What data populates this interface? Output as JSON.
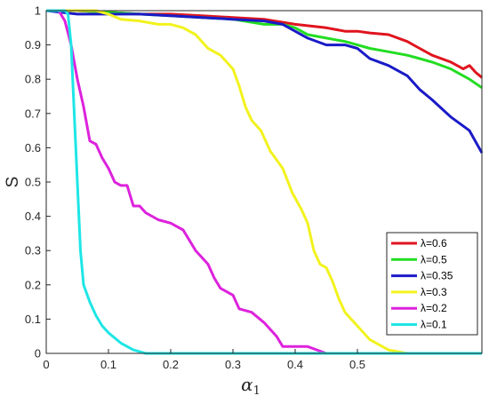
{
  "chart_data": {
    "type": "line",
    "title": "",
    "xlabel": "α",
    "xlabel_subscript": "1",
    "ylabel": "S",
    "xlim": [
      0,
      0.7
    ],
    "ylim": [
      0,
      1
    ],
    "xticks": [
      "0",
      "0.1",
      "0.2",
      "0.3",
      "0.4",
      "0.5"
    ],
    "xtick_values": [
      0,
      0.1,
      0.2,
      0.3,
      0.4,
      0.5
    ],
    "yticks": [
      "0",
      "0.1",
      "0.2",
      "0.3",
      "0.4",
      "0.5",
      "0.6",
      "0.7",
      "0.8",
      "0.9",
      "1"
    ],
    "ytick_values": [
      0,
      0.1,
      0.2,
      0.3,
      0.4,
      0.5,
      0.6,
      0.7,
      0.8,
      0.9,
      1
    ],
    "grid": false,
    "legend_position": "bottom-right",
    "series": [
      {
        "name": "λ=0.6",
        "color": "#e0141e",
        "points": [
          [
            0,
            1
          ],
          [
            0.05,
            1
          ],
          [
            0.1,
            0.995
          ],
          [
            0.15,
            0.99
          ],
          [
            0.2,
            0.99
          ],
          [
            0.25,
            0.985
          ],
          [
            0.3,
            0.98
          ],
          [
            0.35,
            0.975
          ],
          [
            0.4,
            0.96
          ],
          [
            0.45,
            0.95
          ],
          [
            0.48,
            0.94
          ],
          [
            0.5,
            0.94
          ],
          [
            0.52,
            0.935
          ],
          [
            0.55,
            0.93
          ],
          [
            0.58,
            0.91
          ],
          [
            0.6,
            0.89
          ],
          [
            0.62,
            0.87
          ],
          [
            0.65,
            0.85
          ],
          [
            0.67,
            0.83
          ],
          [
            0.68,
            0.84
          ],
          [
            0.69,
            0.82
          ],
          [
            0.7,
            0.805
          ]
        ]
      },
      {
        "name": "λ=0.5",
        "color": "#22dd22",
        "points": [
          [
            0,
            1
          ],
          [
            0.05,
            1
          ],
          [
            0.1,
            0.995
          ],
          [
            0.15,
            0.99
          ],
          [
            0.2,
            0.985
          ],
          [
            0.25,
            0.98
          ],
          [
            0.3,
            0.975
          ],
          [
            0.35,
            0.96
          ],
          [
            0.38,
            0.96
          ],
          [
            0.4,
            0.95
          ],
          [
            0.42,
            0.93
          ],
          [
            0.45,
            0.92
          ],
          [
            0.48,
            0.91
          ],
          [
            0.5,
            0.9
          ],
          [
            0.52,
            0.89
          ],
          [
            0.55,
            0.88
          ],
          [
            0.58,
            0.87
          ],
          [
            0.6,
            0.86
          ],
          [
            0.62,
            0.85
          ],
          [
            0.65,
            0.83
          ],
          [
            0.68,
            0.8
          ],
          [
            0.7,
            0.775
          ]
        ]
      },
      {
        "name": "λ=0.35",
        "color": "#1a1ac8",
        "points": [
          [
            0,
            1
          ],
          [
            0.05,
            0.99
          ],
          [
            0.1,
            0.99
          ],
          [
            0.15,
            0.99
          ],
          [
            0.2,
            0.985
          ],
          [
            0.25,
            0.98
          ],
          [
            0.3,
            0.975
          ],
          [
            0.35,
            0.97
          ],
          [
            0.38,
            0.96
          ],
          [
            0.4,
            0.94
          ],
          [
            0.42,
            0.92
          ],
          [
            0.45,
            0.9
          ],
          [
            0.48,
            0.9
          ],
          [
            0.5,
            0.89
          ],
          [
            0.52,
            0.86
          ],
          [
            0.55,
            0.84
          ],
          [
            0.58,
            0.81
          ],
          [
            0.6,
            0.77
          ],
          [
            0.62,
            0.74
          ],
          [
            0.65,
            0.69
          ],
          [
            0.68,
            0.65
          ],
          [
            0.7,
            0.585
          ]
        ]
      },
      {
        "name": "λ=0.3",
        "color": "#f2f21e",
        "points": [
          [
            0,
            1
          ],
          [
            0.05,
            1
          ],
          [
            0.08,
            1
          ],
          [
            0.1,
            0.99
          ],
          [
            0.12,
            0.975
          ],
          [
            0.15,
            0.97
          ],
          [
            0.18,
            0.96
          ],
          [
            0.2,
            0.96
          ],
          [
            0.22,
            0.95
          ],
          [
            0.24,
            0.93
          ],
          [
            0.26,
            0.89
          ],
          [
            0.28,
            0.87
          ],
          [
            0.3,
            0.83
          ],
          [
            0.31,
            0.78
          ],
          [
            0.32,
            0.72
          ],
          [
            0.33,
            0.68
          ],
          [
            0.345,
            0.65
          ],
          [
            0.36,
            0.59
          ],
          [
            0.38,
            0.54
          ],
          [
            0.395,
            0.47
          ],
          [
            0.41,
            0.42
          ],
          [
            0.42,
            0.38
          ],
          [
            0.43,
            0.3
          ],
          [
            0.44,
            0.26
          ],
          [
            0.45,
            0.25
          ],
          [
            0.46,
            0.21
          ],
          [
            0.47,
            0.16
          ],
          [
            0.48,
            0.12
          ],
          [
            0.5,
            0.08
          ],
          [
            0.52,
            0.04
          ],
          [
            0.55,
            0.01
          ],
          [
            0.58,
            0
          ],
          [
            0.7,
            0
          ]
        ]
      },
      {
        "name": "λ=0.2",
        "color": "#dd22dd",
        "points": [
          [
            0.02,
            1
          ],
          [
            0.03,
            0.97
          ],
          [
            0.04,
            0.9
          ],
          [
            0.05,
            0.8
          ],
          [
            0.06,
            0.72
          ],
          [
            0.07,
            0.62
          ],
          [
            0.08,
            0.61
          ],
          [
            0.09,
            0.57
          ],
          [
            0.1,
            0.54
          ],
          [
            0.11,
            0.5
          ],
          [
            0.12,
            0.49
          ],
          [
            0.13,
            0.49
          ],
          [
            0.14,
            0.43
          ],
          [
            0.15,
            0.43
          ],
          [
            0.16,
            0.41
          ],
          [
            0.18,
            0.39
          ],
          [
            0.2,
            0.38
          ],
          [
            0.22,
            0.36
          ],
          [
            0.24,
            0.3
          ],
          [
            0.25,
            0.28
          ],
          [
            0.26,
            0.26
          ],
          [
            0.27,
            0.22
          ],
          [
            0.28,
            0.19
          ],
          [
            0.3,
            0.17
          ],
          [
            0.31,
            0.13
          ],
          [
            0.33,
            0.12
          ],
          [
            0.35,
            0.09
          ],
          [
            0.37,
            0.05
          ],
          [
            0.38,
            0.02
          ],
          [
            0.42,
            0.02
          ],
          [
            0.45,
            0
          ],
          [
            0.7,
            0
          ]
        ]
      },
      {
        "name": "λ=0.1",
        "color": "#1ee6e6",
        "points": [
          [
            0,
            1
          ],
          [
            0.03,
            1
          ],
          [
            0.035,
            0.99
          ],
          [
            0.04,
            0.9
          ],
          [
            0.045,
            0.7
          ],
          [
            0.05,
            0.5
          ],
          [
            0.055,
            0.3
          ],
          [
            0.06,
            0.2
          ],
          [
            0.07,
            0.15
          ],
          [
            0.08,
            0.11
          ],
          [
            0.09,
            0.08
          ],
          [
            0.1,
            0.06
          ],
          [
            0.12,
            0.03
          ],
          [
            0.14,
            0.01
          ],
          [
            0.16,
            0
          ],
          [
            0.7,
            0
          ]
        ]
      }
    ]
  }
}
